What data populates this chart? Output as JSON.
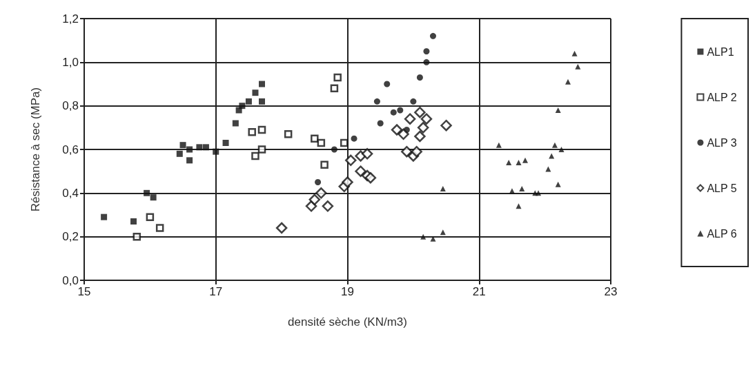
{
  "chart_data": {
    "type": "scatter",
    "xlabel": "densité sèche (KN/m3)",
    "ylabel": "Résistance à sec (MPa)",
    "xlim": [
      15,
      23
    ],
    "xticks": [
      15,
      17,
      19,
      21,
      23
    ],
    "ylim": [
      0,
      1.2
    ],
    "yticks": [
      {
        "value": 0,
        "label": "0,0"
      },
      {
        "value": 0.2,
        "label": "0,2"
      },
      {
        "value": 0.4,
        "label": "0,4"
      },
      {
        "value": 0.6,
        "label": "0,6"
      },
      {
        "value": 0.8,
        "label": "0,8"
      },
      {
        "value": 1.0,
        "label": "1,0"
      },
      {
        "value": 1.2,
        "label": "1,2"
      }
    ],
    "grid": true,
    "legend": "right",
    "series": [
      {
        "name": "ALP1",
        "color": "#111111",
        "marker": "square",
        "x": [
          15.3,
          15.75,
          15.95,
          16.05,
          16.45,
          16.5,
          16.6,
          16.6,
          16.75,
          16.85,
          17.0,
          17.15,
          17.3,
          17.35,
          17.4,
          17.5,
          17.6,
          17.7,
          17.7
        ],
        "values": [
          0.29,
          0.27,
          0.4,
          0.38,
          0.58,
          0.62,
          0.55,
          0.6,
          0.61,
          0.61,
          0.59,
          0.63,
          0.72,
          0.78,
          0.8,
          0.82,
          0.86,
          0.82,
          0.9
        ]
      },
      {
        "name": "ALP 2",
        "color": "#111111",
        "marker": "square",
        "x": [
          15.8,
          16.0,
          16.15,
          17.55,
          17.6,
          17.7,
          17.7,
          18.1,
          18.5,
          18.6,
          18.65,
          18.8,
          18.85,
          18.95
        ],
        "values": [
          0.2,
          0.29,
          0.24,
          0.68,
          0.57,
          0.6,
          0.69,
          0.67,
          0.65,
          0.63,
          0.53,
          0.88,
          0.93,
          0.63
        ]
      },
      {
        "name": "ALP 3",
        "color": "#111111",
        "marker": "circle",
        "x": [
          18.55,
          18.8,
          19.1,
          19.45,
          19.5,
          19.6,
          19.7,
          19.8,
          19.9,
          20.0,
          20.1,
          20.2,
          20.2,
          20.3
        ],
        "values": [
          0.45,
          0.6,
          0.65,
          0.82,
          0.72,
          0.9,
          0.77,
          0.78,
          0.69,
          0.82,
          0.93,
          1.0,
          1.05,
          1.12
        ]
      },
      {
        "name": "ALP 5",
        "color": "#111111",
        "marker": "diamond",
        "x": [
          18.0,
          18.45,
          18.5,
          18.6,
          18.7,
          18.95,
          19.0,
          19.05,
          19.2,
          19.2,
          19.3,
          19.3,
          19.35,
          19.75,
          19.85,
          19.9,
          19.95,
          20.0,
          20.05,
          20.1,
          20.1,
          20.15,
          20.2,
          20.5
        ],
        "values": [
          0.24,
          0.34,
          0.37,
          0.4,
          0.34,
          0.43,
          0.45,
          0.55,
          0.57,
          0.5,
          0.58,
          0.48,
          0.47,
          0.69,
          0.67,
          0.59,
          0.74,
          0.57,
          0.59,
          0.66,
          0.77,
          0.7,
          0.74,
          0.71
        ]
      },
      {
        "name": "ALP 6",
        "color": "#111111",
        "marker": "triangle",
        "x": [
          20.15,
          20.3,
          20.45,
          20.45,
          21.3,
          21.45,
          21.5,
          21.6,
          21.6,
          21.65,
          21.7,
          21.85,
          21.9,
          22.05,
          22.1,
          22.15,
          22.2,
          22.2,
          22.25,
          22.35,
          22.45,
          22.5
        ],
        "values": [
          0.2,
          0.19,
          0.22,
          0.42,
          0.62,
          0.54,
          0.41,
          0.54,
          0.34,
          0.42,
          0.55,
          0.4,
          0.4,
          0.51,
          0.57,
          0.62,
          0.44,
          0.78,
          0.6,
          0.91,
          1.04,
          0.98
        ]
      }
    ]
  }
}
